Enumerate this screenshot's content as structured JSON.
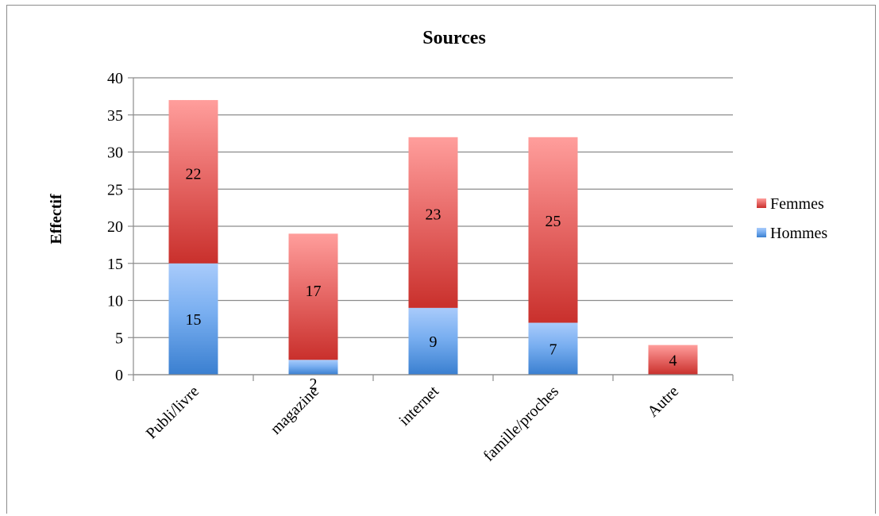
{
  "chart_data": {
    "type": "bar",
    "stacked": true,
    "title": "Sources",
    "xlabel": "",
    "ylabel": "Effectif",
    "ylim": [
      0,
      40
    ],
    "yticks": [
      0,
      5,
      10,
      15,
      20,
      25,
      30,
      35,
      40
    ],
    "grid": true,
    "legend_position": "right",
    "categories": [
      "Publi/livre",
      "magazine",
      "internet",
      "famille/proches",
      "Autre"
    ],
    "series": [
      {
        "name": "Hommes",
        "values": [
          15,
          2,
          9,
          7,
          0
        ],
        "labels": [
          "15",
          "2",
          "9",
          "7",
          ""
        ],
        "color": "#5b9bd5"
      },
      {
        "name": "Femmes",
        "values": [
          22,
          17,
          23,
          25,
          4
        ],
        "labels": [
          "22",
          "17",
          "23",
          "25",
          "4"
        ],
        "color": "#d9403a"
      }
    ],
    "legend_order": [
      "Femmes",
      "Hommes"
    ]
  }
}
